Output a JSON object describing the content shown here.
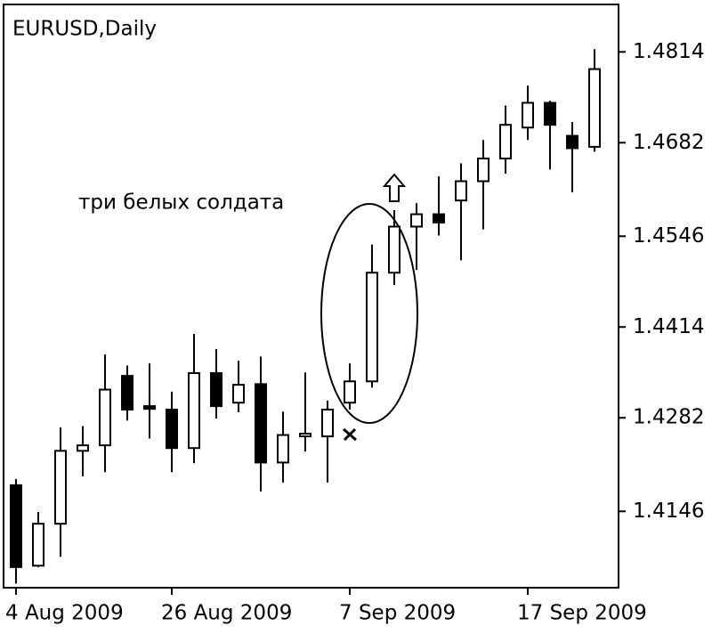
{
  "chart_data": {
    "type": "candlestick",
    "title": "EURUSD,Daily",
    "annotation": "три белых солдата",
    "categories": [
      "4 Aug 2009",
      null,
      null,
      null,
      null,
      null,
      null,
      "26 Aug 2009",
      null,
      null,
      null,
      null,
      null,
      null,
      null,
      "7 Sep 2009",
      null,
      null,
      null,
      null,
      null,
      null,
      null,
      "17 Sep 2009",
      null,
      null,
      null
    ],
    "open": [
      1.4184,
      1.4067,
      1.4128,
      1.4234,
      1.4242,
      1.4343,
      1.4299,
      1.4294,
      1.4238,
      1.4347,
      1.4304,
      1.4331,
      1.4217,
      1.4255,
      1.4255,
      1.4304,
      1.4335,
      1.4493,
      1.456,
      1.4578,
      1.4598,
      1.4626,
      1.4659,
      1.4704,
      1.474,
      1.4692,
      1.4676
    ],
    "high": [
      1.4193,
      1.4145,
      1.4268,
      1.427,
      1.4374,
      1.4358,
      1.4361,
      1.432,
      1.4404,
      1.4382,
      1.4365,
      1.4371,
      1.4291,
      1.4348,
      1.4307,
      1.4361,
      1.4534,
      1.4584,
      1.4594,
      1.4633,
      1.4652,
      1.4686,
      1.4736,
      1.4765,
      1.4743,
      1.4712,
      1.4818
    ],
    "low": [
      1.4041,
      1.4065,
      1.408,
      1.4197,
      1.4203,
      1.4278,
      1.4252,
      1.4203,
      1.4216,
      1.4281,
      1.429,
      1.4175,
      1.4188,
      1.4233,
      1.4188,
      1.4294,
      1.4326,
      1.4475,
      1.4497,
      1.4547,
      1.4511,
      1.4556,
      1.4637,
      1.4686,
      1.4643,
      1.461,
      1.4669
    ],
    "close": [
      1.4065,
      1.4128,
      1.4234,
      1.4242,
      1.4323,
      1.4294,
      1.4295,
      1.4238,
      1.4347,
      1.4299,
      1.433,
      1.4217,
      1.4257,
      1.4259,
      1.4294,
      1.4335,
      1.4493,
      1.456,
      1.4578,
      1.4566,
      1.4626,
      1.4659,
      1.4708,
      1.474,
      1.4708,
      1.4674,
      1.4789
    ],
    "up_color": "#ffffff",
    "down_color": "#000000",
    "ylim": [
      1.4035,
      1.4883
    ],
    "yticks": [
      1.4146,
      1.4282,
      1.4414,
      1.4546,
      1.4682,
      1.4814
    ]
  }
}
